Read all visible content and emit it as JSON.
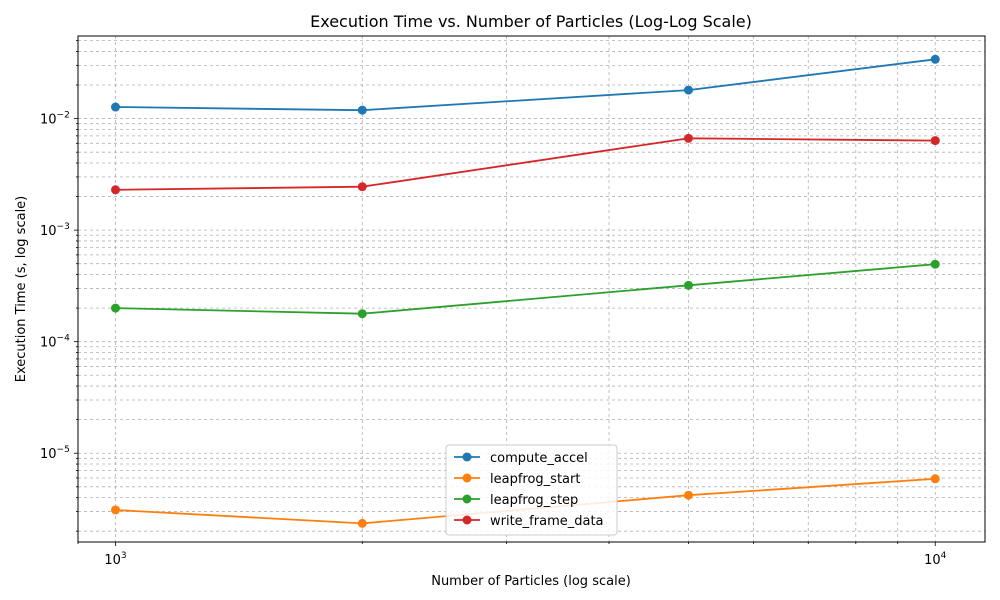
{
  "chart_data": {
    "type": "line",
    "title": "Execution Time vs. Number of Particles (Log-Log Scale)",
    "xlabel": "Number of Particles (log scale)",
    "ylabel": "Execution Time (s, log scale)",
    "x_scale": "log",
    "y_scale": "log",
    "x": [
      1000,
      2000,
      5000,
      10000
    ],
    "xlim": [
      900,
      11500
    ],
    "ylim": [
      1.6e-06,
      0.055
    ],
    "x_ticks": [
      {
        "value": 1000,
        "base": "10",
        "exp": "3"
      },
      {
        "value": 10000,
        "base": "10",
        "exp": "4"
      }
    ],
    "y_ticks": [
      {
        "value": 1e-05,
        "base": "10",
        "exp": "−5"
      },
      {
        "value": 0.0001,
        "base": "10",
        "exp": "−4"
      },
      {
        "value": 0.001,
        "base": "10",
        "exp": "−3"
      },
      {
        "value": 0.01,
        "base": "10",
        "exp": "−2"
      }
    ],
    "grid": true,
    "legend_position": "lower-center",
    "series": [
      {
        "name": "compute_accel",
        "color": "#1f77b4",
        "values": [
          0.0127,
          0.0119,
          0.018,
          0.034
        ]
      },
      {
        "name": "leapfrog_start",
        "color": "#ff7f0e",
        "values": [
          3.1e-06,
          2.35e-06,
          4.2e-06,
          5.9e-06
        ]
      },
      {
        "name": "leapfrog_step",
        "color": "#2ca02c",
        "values": [
          0.0002,
          0.000178,
          0.00032,
          0.000495
        ]
      },
      {
        "name": "write_frame_data",
        "color": "#d62728",
        "values": [
          0.0023,
          0.00245,
          0.00665,
          0.00635
        ]
      }
    ]
  }
}
